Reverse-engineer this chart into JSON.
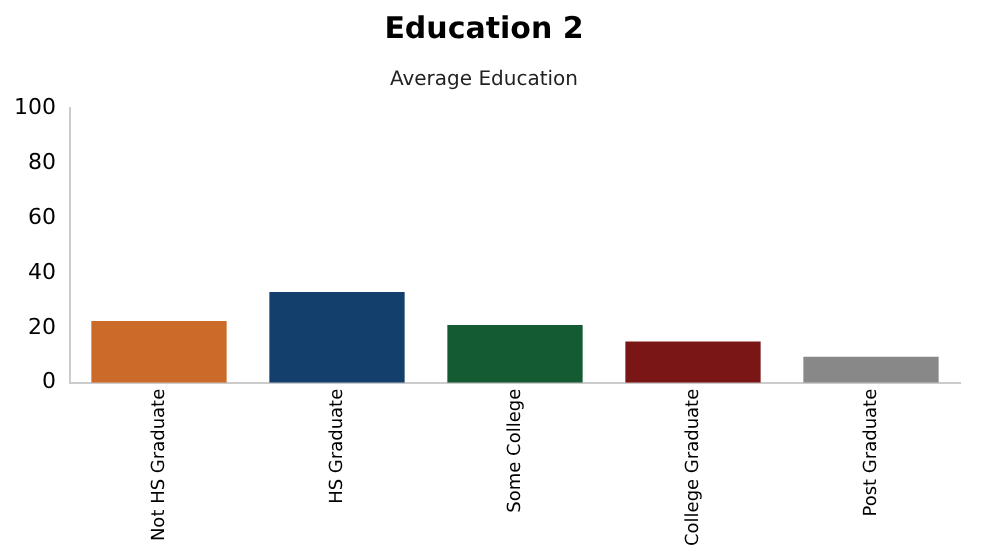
{
  "chart_data": {
    "type": "bar",
    "title": "Education 2",
    "subtitle": "Average Education",
    "categories": [
      "Not HS Graduate",
      "HS Graduate",
      "Some College",
      "College Graduate",
      "Post Graduate"
    ],
    "values": [
      22.5,
      33,
      21,
      15,
      9.5
    ],
    "colors": [
      "#cc6a2a",
      "#123f6b",
      "#145a32",
      "#7a1616",
      "#888888"
    ],
    "ylim": [
      0,
      100
    ],
    "yticks": [
      0,
      20,
      40,
      60,
      80,
      100
    ],
    "grid": false,
    "legend": false
  }
}
